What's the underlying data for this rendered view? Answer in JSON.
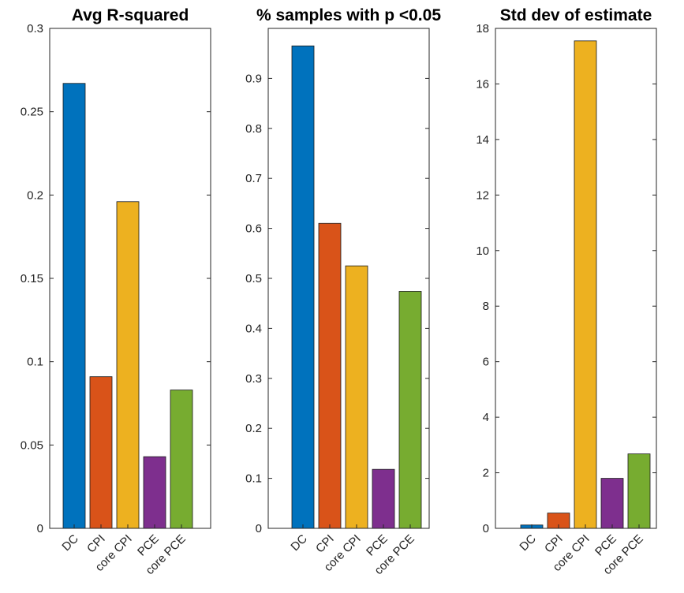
{
  "colors": {
    "DC": "#0072BD",
    "CPI": "#D95319",
    "core CPI": "#EDB120",
    "PCE": "#7E2F8E",
    "core PCE": "#77AC30"
  },
  "chart_data": [
    {
      "type": "bar",
      "title": "Avg R-squared",
      "categories": [
        "DC",
        "CPI",
        "core CPI",
        "PCE",
        "core PCE"
      ],
      "values": [
        0.267,
        0.091,
        0.196,
        0.043,
        0.083
      ],
      "ylim": [
        0,
        0.3
      ],
      "yticks": [
        "0",
        "0.05",
        "0.1",
        "0.15",
        "0.2",
        "0.25",
        "0.3"
      ],
      "grid": false
    },
    {
      "type": "bar",
      "title": "% samples with p <0.05",
      "categories": [
        "DC",
        "CPI",
        "core CPI",
        "PCE",
        "core PCE"
      ],
      "values": [
        0.965,
        0.61,
        0.525,
        0.118,
        0.474
      ],
      "ylim": [
        0,
        1.0
      ],
      "yticks": [
        "0",
        "0.1",
        "0.2",
        "0.3",
        "0.4",
        "0.5",
        "0.6",
        "0.7",
        "0.8",
        "0.9"
      ],
      "grid": false
    },
    {
      "type": "bar",
      "title": "Std dev of estimate",
      "categories": [
        "DC",
        "CPI",
        "core CPI",
        "PCE",
        "core PCE"
      ],
      "values": [
        0.12,
        0.55,
        17.55,
        1.8,
        2.68
      ],
      "ylim": [
        0,
        18
      ],
      "yticks": [
        "0",
        "2",
        "4",
        "6",
        "8",
        "10",
        "12",
        "14",
        "16",
        "18"
      ],
      "grid": false
    }
  ]
}
